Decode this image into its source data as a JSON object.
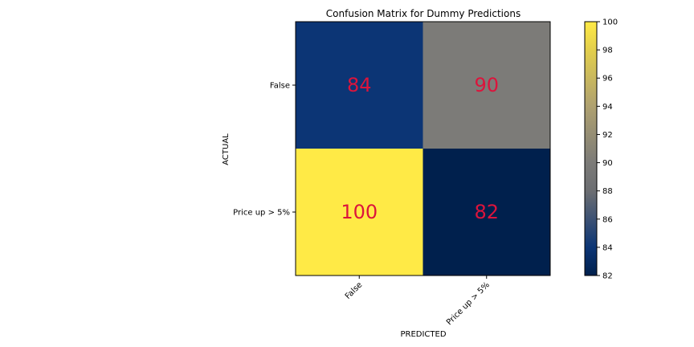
{
  "chart_data": {
    "type": "heatmap",
    "title": "Confusion Matrix for Dummy Predictions",
    "xlabel": "PREDICTED",
    "ylabel": "ACTUAL",
    "x_categories": [
      "False",
      "Price up > 5%"
    ],
    "y_categories": [
      "False",
      "Price up > 5%"
    ],
    "values": [
      [
        84,
        90
      ],
      [
        100,
        82
      ]
    ],
    "colorbar": {
      "colormap": "cividis",
      "vmin": 82,
      "vmax": 100,
      "ticks": [
        82,
        84,
        86,
        88,
        90,
        92,
        94,
        96,
        98,
        100
      ]
    },
    "annotation_color": "#dc143c"
  }
}
